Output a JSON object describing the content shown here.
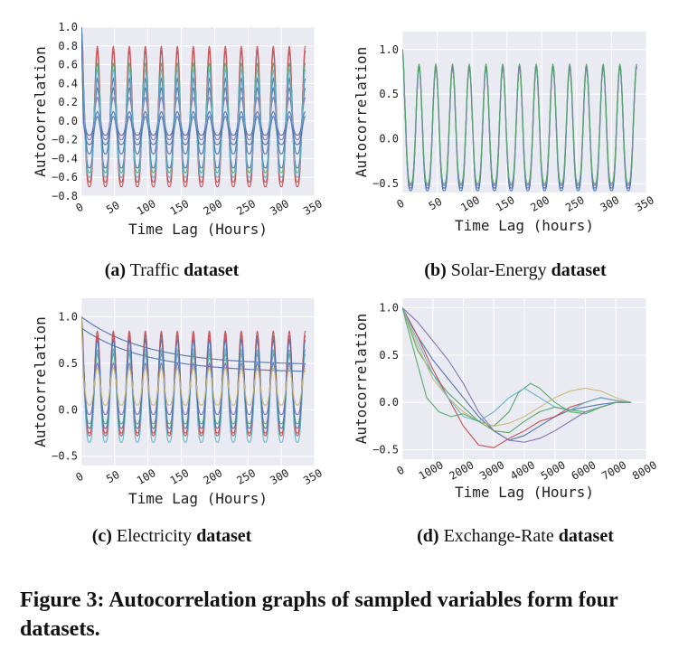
{
  "figure_caption": "Figure 3: Autocorrelation graphs of sampled variables form four datasets.",
  "colors": {
    "plot_bg": "#eaeaf2",
    "grid": "#ffffff",
    "blue": "#4c72b0",
    "green": "#55a868",
    "red": "#c44e52",
    "purple": "#8172b2",
    "yellow": "#ccb974",
    "cyan": "#64b5cd"
  },
  "panels": [
    {
      "id": "a",
      "caption": {
        "label": "(a)",
        "name": "Traffic",
        "suffix": "dataset"
      }
    },
    {
      "id": "b",
      "caption": {
        "label": "(b)",
        "name": "Solar-Energy",
        "suffix": "dataset"
      }
    },
    {
      "id": "c",
      "caption": {
        "label": "(c)",
        "name": "Electricity",
        "suffix": "dataset"
      }
    },
    {
      "id": "d",
      "caption": {
        "label": "(d)",
        "name": "Exchange-Rate",
        "suffix": "dataset"
      }
    }
  ],
  "chart_data": [
    {
      "type": "line",
      "panel": "a",
      "xlabel": "Time Lag (Hours)",
      "ylabel": "Autocorrelation",
      "xlim": [
        0,
        350
      ],
      "ylim": [
        -0.8,
        1.0
      ],
      "xticks": [
        0,
        50,
        100,
        150,
        200,
        250,
        300,
        350
      ],
      "yticks": [
        -0.8,
        -0.6,
        -0.4,
        -0.2,
        0.0,
        0.2,
        0.4,
        0.6,
        0.8,
        1.0
      ],
      "ytick_labels": [
        "−0.8",
        "−0.6",
        "−0.4",
        "−0.2",
        "0.0",
        "0.2",
        "0.4",
        "0.6",
        "0.8",
        "1.0"
      ],
      "grid": true,
      "period_hours": 24,
      "x_max_data": 336,
      "series": [
        {
          "color": "red",
          "peak": 0.75,
          "trough": -0.65
        },
        {
          "color": "red",
          "peak": 0.8,
          "trough": -0.7
        },
        {
          "color": "green",
          "peak": 0.62,
          "trough": -0.55
        },
        {
          "color": "blue",
          "peak": 0.45,
          "trough": -0.5
        },
        {
          "color": "blue",
          "peak": 0.35,
          "trough": -0.35
        },
        {
          "color": "purple",
          "peak": 0.25,
          "trough": -0.2
        },
        {
          "color": "blue",
          "peak": 0.1,
          "trough": -0.15
        },
        {
          "color": "cyan",
          "peak": 0.55,
          "trough": -0.6
        },
        {
          "color": "blue",
          "peak": 0.05,
          "trough": -0.25
        }
      ]
    },
    {
      "type": "line",
      "panel": "b",
      "xlabel": "Time Lag (hours)",
      "ylabel": "Autocorrelation",
      "xlim": [
        0,
        350
      ],
      "ylim": [
        -0.6,
        1.2
      ],
      "xticks": [
        0,
        50,
        100,
        150,
        200,
        250,
        300,
        350
      ],
      "yticks": [
        -0.5,
        0.0,
        0.5,
        1.0
      ],
      "ytick_labels": [
        "−0.5",
        "0.0",
        "0.5",
        "1.0"
      ],
      "grid": true,
      "period_hours": 24,
      "x_max_data": 336,
      "series": [
        {
          "color": "blue",
          "peak": 0.82,
          "trough": -0.58
        },
        {
          "color": "blue",
          "peak": 0.8,
          "trough": -0.55
        },
        {
          "color": "purple",
          "peak": 0.81,
          "trough": -0.52
        },
        {
          "color": "green",
          "peak": 0.84,
          "trough": -0.5
        }
      ]
    },
    {
      "type": "line",
      "panel": "c",
      "xlabel": "Time Lag (Hours)",
      "ylabel": "Autocorrelation",
      "xlim": [
        0,
        350
      ],
      "ylim": [
        -0.6,
        1.2
      ],
      "xticks": [
        0,
        50,
        100,
        150,
        200,
        250,
        300,
        350
      ],
      "yticks": [
        -0.5,
        0.0,
        0.5,
        1.0
      ],
      "ytick_labels": [
        "−0.5",
        "0.0",
        "0.5",
        "1.0"
      ],
      "grid": true,
      "period_hours": 24,
      "x_max_data": 336,
      "series": [
        {
          "color": "blue",
          "kind": "decay",
          "start": 1.0,
          "end": 0.48
        },
        {
          "color": "blue",
          "kind": "decay",
          "start": 0.88,
          "end": 0.4
        },
        {
          "color": "red",
          "peak": 0.85,
          "trough": -0.28,
          "base": 0.4
        },
        {
          "color": "red",
          "peak": 0.8,
          "trough": -0.25,
          "base": 0.2
        },
        {
          "color": "green",
          "peak": 0.6,
          "trough": -0.15
        },
        {
          "color": "cyan",
          "peak": 0.65,
          "trough": -0.35
        },
        {
          "color": "purple",
          "peak": 0.5,
          "trough": -0.05
        },
        {
          "color": "blue",
          "peak": 0.75,
          "trough": -0.2
        },
        {
          "color": "yellow",
          "peak": 0.45,
          "trough": 0.05
        }
      ]
    },
    {
      "type": "line",
      "panel": "d",
      "xlabel": "Time Lag (Hours)",
      "ylabel": "Autocorrelation",
      "xlim": [
        0,
        8000
      ],
      "ylim": [
        -0.6,
        1.1
      ],
      "xticks": [
        0,
        1000,
        2000,
        3000,
        4000,
        5000,
        6000,
        7000,
        8000
      ],
      "yticks": [
        -0.5,
        0.0,
        0.5,
        1.0
      ],
      "ytick_labels": [
        "−0.5",
        "0.0",
        "0.5",
        "1.0"
      ],
      "grid": true,
      "series": [
        {
          "color": "blue",
          "x": [
            0,
            500,
            1000,
            1500,
            2000,
            2500,
            3000,
            3500,
            4000,
            4500,
            5000,
            5500,
            6000,
            6500,
            7000,
            7500
          ],
          "y": [
            1.0,
            0.7,
            0.45,
            0.25,
            0.05,
            -0.15,
            -0.3,
            -0.4,
            -0.35,
            -0.25,
            -0.15,
            -0.08,
            -0.05,
            -0.02,
            0.0,
            0.0
          ]
        },
        {
          "color": "green",
          "x": [
            0,
            500,
            1000,
            1500,
            2000,
            2500,
            3000,
            3500,
            3800,
            4200,
            4500,
            5000,
            5500,
            6000,
            6500,
            7000,
            7500
          ],
          "y": [
            1.0,
            0.55,
            0.3,
            0.1,
            -0.05,
            -0.2,
            -0.25,
            -0.1,
            0.1,
            0.2,
            0.15,
            0.0,
            -0.1,
            -0.12,
            -0.05,
            0.0,
            0.0
          ]
        },
        {
          "color": "red",
          "x": [
            0,
            500,
            1000,
            1500,
            2000,
            2500,
            3000,
            3500,
            4000,
            4500,
            5000,
            5500,
            6000,
            6500,
            7000,
            7500
          ],
          "y": [
            1.0,
            0.7,
            0.35,
            0.05,
            -0.25,
            -0.45,
            -0.48,
            -0.38,
            -0.3,
            -0.2,
            -0.15,
            -0.05,
            0.0,
            0.05,
            0.02,
            0.0
          ]
        },
        {
          "color": "purple",
          "x": [
            0,
            500,
            1000,
            1500,
            2000,
            2500,
            3000,
            3500,
            4000,
            4500,
            5000,
            5500,
            6000,
            6500,
            7000,
            7500
          ],
          "y": [
            1.0,
            0.85,
            0.65,
            0.45,
            0.2,
            -0.1,
            -0.3,
            -0.4,
            -0.42,
            -0.38,
            -0.3,
            -0.2,
            -0.1,
            -0.05,
            0.0,
            0.0
          ]
        },
        {
          "color": "yellow",
          "x": [
            0,
            500,
            1000,
            1500,
            2000,
            2500,
            3000,
            3500,
            4000,
            4500,
            5000,
            5500,
            6000,
            6500,
            7000,
            7500
          ],
          "y": [
            1.0,
            0.6,
            0.25,
            0.05,
            -0.1,
            -0.2,
            -0.25,
            -0.22,
            -0.15,
            -0.05,
            0.05,
            0.12,
            0.15,
            0.12,
            0.05,
            0.0
          ]
        },
        {
          "color": "cyan",
          "x": [
            0,
            500,
            1000,
            1500,
            2000,
            2500,
            3000,
            3500,
            4000,
            4500,
            5000,
            5500,
            6000,
            6500,
            7000,
            7500
          ],
          "y": [
            1.0,
            0.65,
            0.3,
            0.05,
            -0.15,
            -0.2,
            -0.1,
            0.05,
            0.15,
            0.05,
            -0.05,
            -0.08,
            0.0,
            0.05,
            0.02,
            0.0
          ]
        },
        {
          "color": "green",
          "x": [
            0,
            500,
            800,
            1200,
            1600,
            2000,
            2500,
            3000,
            3500,
            4000,
            4500,
            5000,
            5500,
            6000,
            6500,
            7000,
            7500
          ],
          "y": [
            1.0,
            0.4,
            0.05,
            -0.1,
            -0.15,
            -0.12,
            -0.2,
            -0.3,
            -0.32,
            -0.2,
            -0.1,
            -0.05,
            -0.08,
            -0.1,
            -0.05,
            0.0,
            0.0
          ]
        }
      ]
    }
  ]
}
